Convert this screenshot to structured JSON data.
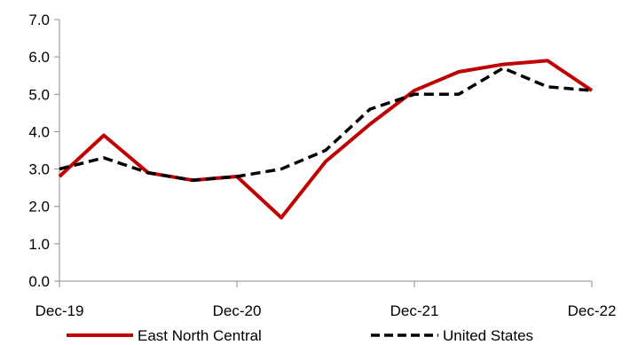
{
  "chart_data": {
    "type": "line",
    "title": "",
    "xlabel": "",
    "ylabel": "",
    "x": [
      "Dec-19",
      "Mar-20",
      "Jun-20",
      "Sep-20",
      "Dec-20",
      "Mar-21",
      "Jun-21",
      "Sep-21",
      "Dec-21",
      "Mar-22",
      "Jun-22",
      "Sep-22",
      "Dec-22"
    ],
    "x_tick_labels": [
      "Dec-19",
      "Dec-20",
      "Dec-21",
      "Dec-22"
    ],
    "ylim": [
      0,
      7
    ],
    "y_tick_labels": [
      "0.0",
      "1.0",
      "2.0",
      "3.0",
      "4.0",
      "5.0",
      "6.0",
      "7.0"
    ],
    "grid": false,
    "legend_position": "bottom",
    "series": [
      {
        "name": "East North Central",
        "color": "#C00000",
        "style": "solid",
        "values": [
          2.8,
          3.9,
          2.9,
          2.7,
          2.8,
          1.7,
          3.2,
          4.2,
          5.1,
          5.6,
          5.8,
          5.9,
          5.1
        ]
      },
      {
        "name": "United States",
        "color": "#000000",
        "style": "dashed",
        "values": [
          3.0,
          3.3,
          2.9,
          2.7,
          2.8,
          3.0,
          3.5,
          4.6,
          5.0,
          5.0,
          5.7,
          5.2,
          5.1
        ]
      }
    ]
  }
}
